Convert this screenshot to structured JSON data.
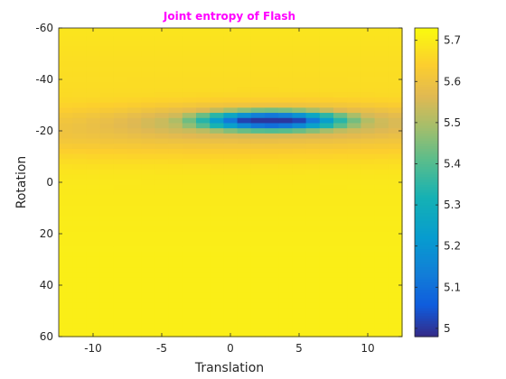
{
  "chart_data": {
    "type": "heatmap",
    "title": "Joint entropy of Flash",
    "title_color": "#ff00ff",
    "xlabel": "Translation",
    "ylabel": "Rotation",
    "xlim": [
      -12.5,
      12.5
    ],
    "ylim": [
      -60,
      60
    ],
    "y_reversed": true,
    "x_ticks": [
      -10,
      -5,
      0,
      5,
      10
    ],
    "x_tick_labels": [
      "-10",
      "-5",
      "0",
      "5",
      "10"
    ],
    "y_ticks": [
      -60,
      -40,
      -20,
      0,
      20,
      40,
      60
    ],
    "y_tick_labels": [
      "-60",
      "-40",
      "-20",
      "0",
      "20",
      "40",
      "60"
    ],
    "grid": false,
    "colormap": "parula",
    "colorbar": {
      "range": [
        4.98,
        5.73
      ],
      "ticks": [
        5,
        5.1,
        5.2,
        5.3,
        5.4,
        5.5,
        5.6,
        5.7
      ],
      "tick_labels": [
        "5",
        "5.1",
        "5.2",
        "5.3",
        "5.4",
        "5.5",
        "5.6",
        "5.7"
      ]
    },
    "translation_step": 1,
    "rotation_step": 2,
    "background_value": 5.69,
    "minimum": {
      "translation": 3,
      "rotation": -24,
      "value": 5.0
    }
  }
}
